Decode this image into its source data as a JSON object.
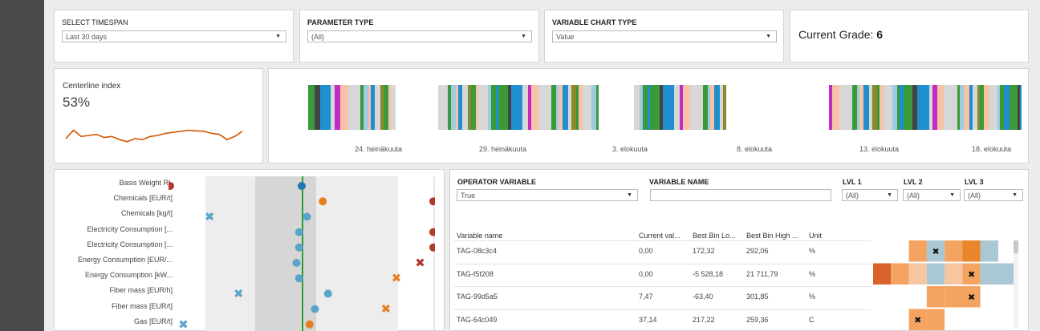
{
  "filters": {
    "timespan": {
      "label": "SELECT TIMESPAN",
      "value": "Last 30 days"
    },
    "parameter_type": {
      "label": "PARAMETER TYPE",
      "value": "(All)"
    },
    "variable_chart_type": {
      "label": "VARIABLE CHART TYPE",
      "value": "Value"
    }
  },
  "grade": {
    "label": "Current Grade:",
    "value": "6"
  },
  "centerline": {
    "title": "Centerline index",
    "value": "53%",
    "sparkline": [
      0.35,
      0.75,
      0.45,
      0.5,
      0.55,
      0.4,
      0.45,
      0.3,
      0.2,
      0.35,
      0.3,
      0.45,
      0.5,
      0.6,
      0.65,
      0.7,
      0.75,
      0.72,
      0.7,
      0.6,
      0.55,
      0.3,
      0.45,
      0.7
    ],
    "color": "#d35400"
  },
  "timeline": {
    "ticks": [
      "24. heinäkuuta",
      "29. heinäkuuta",
      "3. elokuuta",
      "8. elokuuta",
      "13. elokuuta",
      "18. elokuuta"
    ],
    "colors": {
      "green": "#3a9a3a",
      "blue": "#1f8fcf",
      "peach": "#f7c2a5",
      "gray": "#d7d7d7",
      "dark": "#444444",
      "magenta": "#c22ac2",
      "lightblue": "#9ccbe2",
      "olive": "#8a8a2a"
    }
  },
  "variables_chart": {
    "labels": [
      "Basis Weight RL",
      "Chemicals [EUR/t]",
      "Chemicals [kg/t]",
      "Electricity Consumption [...",
      "Electricity Consumption [...",
      "Energy Consumption [EUR/...",
      "Energy Consumption [kW...",
      "Fiber mass [EUR/h]",
      "Fiber mass [EUR/t]",
      "Gas [EUR/t]"
    ],
    "points": [
      {
        "row": 0,
        "marker": "dot",
        "color": "#1f77b4",
        "pos": 0.5
      },
      {
        "row": 0,
        "marker": "dot",
        "color": "#b03a2e",
        "pos": 0.0
      },
      {
        "row": 1,
        "marker": "dot",
        "color": "#e67e22",
        "pos": 0.58
      },
      {
        "row": 1,
        "marker": "dot",
        "color": "#b03a2e",
        "pos": 1.0
      },
      {
        "row": 2,
        "marker": "x",
        "color": "#5ba4c9",
        "pos": 0.15
      },
      {
        "row": 2,
        "marker": "dot",
        "color": "#5ba4c9",
        "pos": 0.52
      },
      {
        "row": 3,
        "marker": "dot",
        "color": "#5ba4c9",
        "pos": 0.49
      },
      {
        "row": 3,
        "marker": "dot",
        "color": "#b03a2e",
        "pos": 1.0
      },
      {
        "row": 4,
        "marker": "dot",
        "color": "#5ba4c9",
        "pos": 0.49
      },
      {
        "row": 4,
        "marker": "dot",
        "color": "#b03a2e",
        "pos": 1.0
      },
      {
        "row": 5,
        "marker": "dot",
        "color": "#5ba4c9",
        "pos": 0.48
      },
      {
        "row": 5,
        "marker": "x",
        "color": "#b03a2e",
        "pos": 0.95
      },
      {
        "row": 6,
        "marker": "dot",
        "color": "#5ba4c9",
        "pos": 0.49
      },
      {
        "row": 6,
        "marker": "x",
        "color": "#e67e22",
        "pos": 0.86
      },
      {
        "row": 7,
        "marker": "x",
        "color": "#5ba4c9",
        "pos": 0.26
      },
      {
        "row": 7,
        "marker": "dot",
        "color": "#5ba4c9",
        "pos": 0.6
      },
      {
        "row": 8,
        "marker": "dot",
        "color": "#5ba4c9",
        "pos": 0.55
      },
      {
        "row": 8,
        "marker": "x",
        "color": "#e67e22",
        "pos": 0.82
      },
      {
        "row": 9,
        "marker": "x",
        "color": "#5ba4c9",
        "pos": 0.05
      },
      {
        "row": 9,
        "marker": "dot",
        "color": "#e67e22",
        "pos": 0.53
      }
    ]
  },
  "operator": {
    "operator_variable": {
      "label": "OPERATOR VARIABLE",
      "value": "True"
    },
    "variable_name": {
      "label": "VARIABLE NAME",
      "value": ""
    },
    "lvl1": {
      "label": "LVL 1",
      "value": "(All)"
    },
    "lvl2": {
      "label": "LVL 2",
      "value": "(All)"
    },
    "lvl3": {
      "label": "LVL 3",
      "value": "(All)"
    }
  },
  "table": {
    "headers": [
      "Variable name",
      "Current val...",
      "Best Bin Lo...",
      "Best Bin High ...",
      "Unit"
    ],
    "rows": [
      {
        "name": "TAG-08c3c4",
        "current": "0,00",
        "low": "172,32",
        "high": "292,06",
        "unit": "%",
        "cells": [
          "#ffffff",
          "#ffffff",
          "#f4a460",
          "#a9c8d3",
          "#f4a460",
          "#e8862b",
          "#a9c8d3",
          "#ffffff",
          "#ffffff",
          "#ffffff"
        ],
        "mark": 3
      },
      {
        "name": "TAG-f5f208",
        "current": "0,00",
        "low": "-5 528,18",
        "high": "21 711,79",
        "unit": "%",
        "cells": [
          "#d9642a",
          "#f4a460",
          "#f7c6a0",
          "#a9c8d3",
          "#f7c6a0",
          "#f4a460",
          "#a9c8d3",
          "#a9c8d3",
          "#ffffff",
          "#ffffff"
        ],
        "mark": 5
      },
      {
        "name": "TAG-99d5a5",
        "current": "7,47",
        "low": "-63,40",
        "high": "301,85",
        "unit": "%",
        "cells": [
          "#ffffff",
          "#ffffff",
          "#ffffff",
          "#f4a460",
          "#f4a460",
          "#f4a460",
          "#ffffff",
          "#ffffff",
          "#ffffff",
          "#ffffff"
        ],
        "mark": 5
      },
      {
        "name": "TAG-64c049",
        "current": "37,14",
        "low": "217,22",
        "high": "259,36",
        "unit": "C",
        "cells": [
          "#ffffff",
          "#ffffff",
          "#f4a460",
          "#f4a460",
          "#ffffff",
          "#ffffff",
          "#ffffff",
          "#ffffff",
          "#ffffff",
          "#7fb1cc"
        ],
        "mark": 2
      }
    ]
  }
}
